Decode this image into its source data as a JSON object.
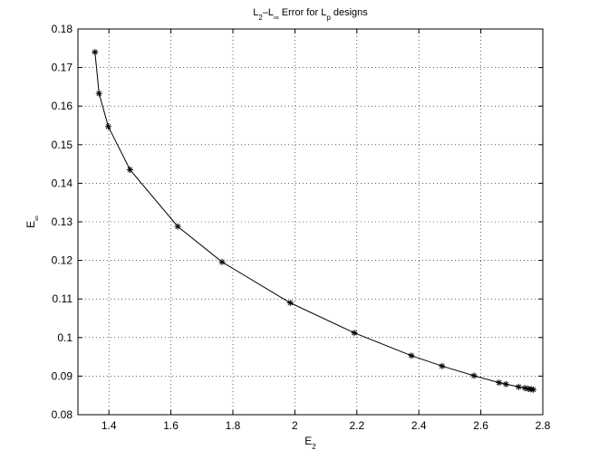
{
  "chart_data": {
    "type": "line",
    "title": {
      "parts": [
        {
          "text": "L",
          "sub": false
        },
        {
          "text": "2",
          "sub": true
        },
        {
          "text": "–L",
          "sub": false
        },
        {
          "text": "∞",
          "sub": true
        },
        {
          "text": " Error for L",
          "sub": false
        },
        {
          "text": "p",
          "sub": true
        },
        {
          "text": " designs",
          "sub": false
        }
      ]
    },
    "xlabel": {
      "main": "E",
      "sub": "2"
    },
    "ylabel": {
      "main": "E",
      "sub": "∞"
    },
    "xlim": [
      1.3,
      2.8
    ],
    "ylim": [
      0.08,
      0.18
    ],
    "xticks": [
      1.4,
      1.6,
      1.8,
      2.0,
      2.2,
      2.4,
      2.6,
      2.8
    ],
    "xtick_labels": [
      "1.4",
      "1.6",
      "1.8",
      "2",
      "2.2",
      "2.4",
      "2.6",
      "2.8"
    ],
    "yticks": [
      0.08,
      0.09,
      0.1,
      0.11,
      0.12,
      0.13,
      0.14,
      0.15,
      0.16,
      0.17,
      0.18
    ],
    "ytick_labels": [
      "0.08",
      "0.09",
      "0.1",
      "0.11",
      "0.12",
      "0.13",
      "0.14",
      "0.15",
      "0.16",
      "0.17",
      "0.18"
    ],
    "grid": true,
    "marker": "asterisk",
    "color": "#000000",
    "series": [
      {
        "x": [
          1.355,
          1.368,
          1.398,
          1.468,
          1.622,
          1.765,
          1.985,
          2.192,
          2.376,
          2.475,
          2.578,
          2.659,
          2.681,
          2.722,
          2.742,
          2.753,
          2.762,
          2.769
        ],
        "y": [
          0.174,
          0.1633,
          0.1547,
          0.1435,
          0.1288,
          0.1196,
          0.109,
          0.1012,
          0.0953,
          0.0926,
          0.0901,
          0.0883,
          0.0879,
          0.0872,
          0.0869,
          0.0867,
          0.0866,
          0.0865
        ]
      }
    ]
  }
}
